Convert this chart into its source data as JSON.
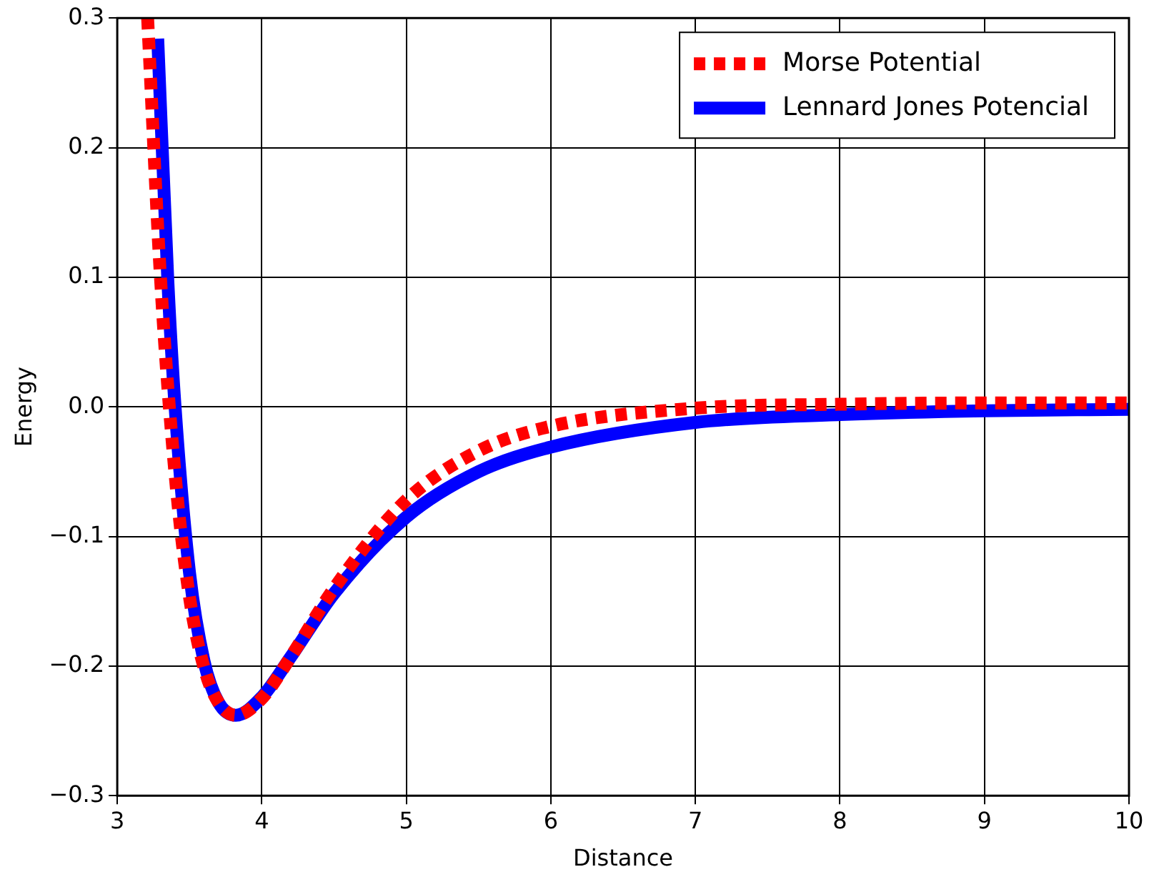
{
  "chart_data": {
    "type": "line",
    "xlabel": "Distance",
    "ylabel": "Energy",
    "xlim": [
      3,
      10
    ],
    "xticks": [
      3,
      4,
      5,
      6,
      7,
      8,
      9,
      10
    ],
    "ylim": [
      -0.3,
      0.3
    ],
    "yticks": [
      {
        "value": -0.3,
        "label": "−0.3"
      },
      {
        "value": -0.2,
        "label": "−0.2"
      },
      {
        "value": -0.1,
        "label": "−0.1"
      },
      {
        "value": 0,
        "label": "0.0"
      },
      0.1,
      0.2,
      0.3
    ],
    "grid": true,
    "legend": "top right",
    "marker": "none",
    "series": [
      {
        "name": "Morse Potential",
        "color": "#ff0000",
        "line_style": "dashed",
        "x": [
          3.21,
          3.3,
          3.4,
          3.5,
          3.6,
          3.7,
          3.82,
          4.0,
          4.2,
          4.5,
          5,
          5.5,
          6,
          7,
          8,
          9,
          10
        ],
        "values": [
          0.3,
          0.098,
          -0.052,
          -0.147,
          -0.201,
          -0.228,
          -0.238,
          -0.225,
          -0.193,
          -0.14,
          -0.072,
          -0.034,
          -0.015,
          -0.001,
          0.002,
          0.003,
          0.003
        ]
      },
      {
        "name": "Lennard Jones Potencial",
        "color": "#0000ff",
        "line_style": "solid",
        "x": [
          3.28,
          3.35,
          3.4,
          3.5,
          3.6,
          3.7,
          3.82,
          4.0,
          4.2,
          4.5,
          5,
          5.5,
          6,
          7,
          8,
          9,
          10
        ],
        "values": [
          0.284,
          0.097,
          0,
          -0.128,
          -0.196,
          -0.228,
          -0.238,
          -0.224,
          -0.193,
          -0.144,
          -0.085,
          -0.05,
          -0.031,
          -0.012,
          -0.006,
          -0.003,
          -0.002
        ]
      }
    ]
  }
}
